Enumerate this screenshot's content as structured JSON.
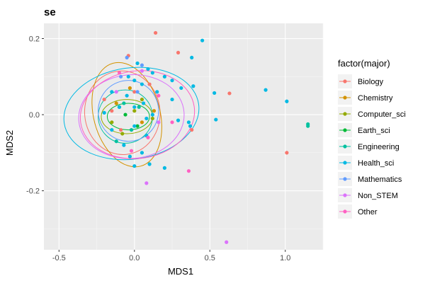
{
  "chart_data": {
    "type": "scatter",
    "title": "se",
    "xlabel": "MDS1",
    "ylabel": "MDS2",
    "xlim": [
      -0.6,
      1.25
    ],
    "ylim": [
      -0.355,
      0.24
    ],
    "x_ticks": [
      -0.5,
      0.0,
      0.5,
      1.0
    ],
    "x_tick_labels": [
      "-0.5",
      "0.0",
      "0.5",
      "1.0"
    ],
    "y_ticks": [
      0.2,
      0.0,
      -0.2
    ],
    "y_tick_labels": [
      "0.2",
      "0.0",
      "-0.2"
    ],
    "grid": true,
    "background": "#ebebeb",
    "legend": {
      "title": "factor(major)",
      "position": "right"
    },
    "series": [
      {
        "name": "Biology",
        "color": "#F8766D",
        "points": [
          [
            0.14,
            0.215
          ],
          [
            0.29,
            0.163
          ],
          [
            -0.04,
            0.155
          ],
          [
            0.63,
            0.056
          ],
          [
            1.01,
            -0.1
          ],
          [
            -0.2,
            0.04
          ],
          [
            -0.15,
            0.01
          ],
          [
            0.0,
            0.06
          ],
          [
            -0.09,
            -0.04
          ],
          [
            0.1,
            0.08
          ],
          [
            0.38,
            -0.04
          ]
        ],
        "ellipse": {
          "cx": -0.08,
          "cy": 0.005,
          "rx": 0.25,
          "ry": 0.11,
          "angle": -5
        }
      },
      {
        "name": "Chemistry",
        "color": "#D39200",
        "points": [
          [
            -0.12,
            0.03
          ],
          [
            0.05,
            -0.02
          ],
          [
            -0.03,
            0.07
          ],
          [
            0.13,
            0.01
          ]
        ],
        "ellipse": {
          "cx": -0.05,
          "cy": 0.0,
          "rx": 0.22,
          "ry": 0.14,
          "angle": -15
        }
      },
      {
        "name": "Computer_sci",
        "color": "#93AA00",
        "points": [
          [
            0.0,
            0.01
          ],
          [
            -0.15,
            -0.02
          ],
          [
            0.05,
            0.04
          ],
          [
            -0.08,
            -0.05
          ],
          [
            0.12,
            -0.01
          ]
        ],
        "ellipse": {
          "cx": -0.05,
          "cy": -0.005,
          "rx": 0.17,
          "ry": 0.045,
          "angle": 0
        }
      },
      {
        "name": "Earth_sci",
        "color": "#00BA38",
        "points": [
          [
            -0.06,
            0.0
          ],
          [
            0.02,
            -0.03
          ],
          [
            -0.1,
            0.02
          ]
        ],
        "ellipse": {
          "cx": -0.04,
          "cy": -0.005,
          "rx": 0.14,
          "ry": 0.035,
          "angle": 0
        }
      },
      {
        "name": "Engineering",
        "color": "#00C19F",
        "points": [
          [
            -0.12,
            -0.07
          ],
          [
            -0.02,
            -0.04
          ],
          [
            0.03,
            0.02
          ],
          [
            1.15,
            -0.03
          ],
          [
            1.15,
            -0.025
          ],
          [
            -0.07,
            0.03
          ]
        ],
        "ellipse": {
          "cx": -0.06,
          "cy": -0.005,
          "rx": 0.18,
          "ry": 0.07,
          "angle": 0
        }
      },
      {
        "name": "Health_sci",
        "color": "#00B9E3",
        "points": [
          [
            0.45,
            0.195
          ],
          [
            0.38,
            0.15
          ],
          [
            0.12,
            0.11
          ],
          [
            0.2,
            0.1
          ],
          [
            0.25,
            0.09
          ],
          [
            0.0,
            0.09
          ],
          [
            0.05,
            0.08
          ],
          [
            -0.04,
            0.1
          ],
          [
            0.31,
            0.07
          ],
          [
            0.39,
            0.075
          ],
          [
            0.53,
            0.057
          ],
          [
            0.87,
            0.065
          ],
          [
            1.01,
            0.035
          ],
          [
            0.54,
            -0.013
          ],
          [
            0.36,
            -0.02
          ],
          [
            0.37,
            -0.03
          ],
          [
            0.29,
            -0.015
          ],
          [
            0.08,
            -0.055
          ],
          [
            0.2,
            -0.14
          ],
          [
            0.0,
            -0.135
          ],
          [
            0.1,
            -0.13
          ],
          [
            -0.03,
            -0.11
          ],
          [
            -0.15,
            -0.04
          ],
          [
            -0.1,
            0.02
          ],
          [
            0.06,
            0.03
          ],
          [
            0.12,
            0.0
          ],
          [
            -0.2,
            0.005
          ],
          [
            0.0,
            -0.03
          ],
          [
            0.15,
            0.06
          ],
          [
            -0.05,
            0.05
          ],
          [
            0.0,
            0.02
          ],
          [
            0.08,
            -0.01
          ],
          [
            -0.07,
            -0.08
          ],
          [
            0.05,
            -0.1
          ],
          [
            0.25,
            0.04
          ],
          [
            0.09,
            0.12
          ],
          [
            0.02,
            0.135
          ],
          [
            -0.15,
            0.06
          ]
        ],
        "ellipse": {
          "cx": -0.02,
          "cy": 0.003,
          "rx": 0.45,
          "ry": 0.12,
          "angle": -8
        }
      },
      {
        "name": "Mathematics",
        "color": "#619CFF",
        "points": [
          [
            -0.05,
            0.15
          ],
          [
            0.05,
            0.13
          ],
          [
            -0.09,
            0.1
          ],
          [
            0.02,
            0.06
          ]
        ],
        "ellipse": {
          "cx": -0.04,
          "cy": 0.01,
          "rx": 0.2,
          "ry": 0.08,
          "angle": -5
        }
      },
      {
        "name": "Non_STEM",
        "color": "#DB72FB",
        "points": [
          [
            0.08,
            -0.18
          ],
          [
            0.61,
            -0.335
          ],
          [
            -0.12,
            0.06
          ],
          [
            0.16,
            -0.02
          ],
          [
            0.05,
            0.115
          ]
        ],
        "ellipse": {
          "cx": -0.02,
          "cy": -0.005,
          "rx": 0.35,
          "ry": 0.11,
          "angle": -5
        }
      },
      {
        "name": "Other",
        "color": "#FF61C3",
        "points": [
          [
            0.36,
            -0.148
          ],
          [
            -0.02,
            -0.095
          ],
          [
            0.25,
            -0.02
          ],
          [
            0.16,
            0.05
          ],
          [
            -0.1,
            0.11
          ],
          [
            0.09,
            -0.06
          ]
        ],
        "ellipse": {
          "cx": 0.02,
          "cy": 0.0,
          "rx": 0.38,
          "ry": 0.115,
          "angle": -8
        }
      }
    ]
  }
}
